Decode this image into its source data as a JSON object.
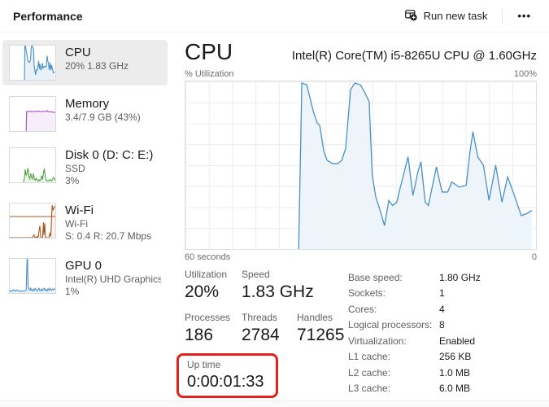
{
  "header": {
    "title": "Performance",
    "run_new_task": "Run new task",
    "more": "•••"
  },
  "sidebar": {
    "items": [
      {
        "id": "cpu",
        "title": "CPU",
        "lines": [
          "20%  1.83 GHz"
        ],
        "selected": true
      },
      {
        "id": "memory",
        "title": "Memory",
        "lines": [
          "3.4/7.9 GB (43%)"
        ]
      },
      {
        "id": "disk0",
        "title": "Disk 0 (D: C: E:)",
        "lines": [
          "SSD",
          "3%"
        ]
      },
      {
        "id": "wifi",
        "title": "Wi-Fi",
        "lines": [
          "Wi-Fi",
          "S: 0.4  R: 20.7 Mbps"
        ]
      },
      {
        "id": "gpu0",
        "title": "GPU 0",
        "lines": [
          "Intel(R) UHD Graphics ...",
          "1%"
        ]
      }
    ]
  },
  "main": {
    "title": "CPU",
    "subtitle": "Intel(R) Core(TM) i5-8265U CPU @ 1.60GHz",
    "chart_labels": {
      "top_left": "% Utilization",
      "top_right": "100%",
      "bottom_left": "60 seconds",
      "bottom_right": "0"
    },
    "stats": {
      "utilization": {
        "label": "Utilization",
        "value": "20%"
      },
      "speed": {
        "label": "Speed",
        "value": "1.83 GHz"
      },
      "processes": {
        "label": "Processes",
        "value": "186"
      },
      "threads": {
        "label": "Threads",
        "value": "2784"
      },
      "handles": {
        "label": "Handles",
        "value": "71265"
      },
      "uptime": {
        "label": "Up time",
        "value": "0:00:01:33"
      }
    },
    "details": [
      {
        "label": "Base speed:",
        "value": "1.80 GHz"
      },
      {
        "label": "Sockets:",
        "value": "1"
      },
      {
        "label": "Cores:",
        "value": "4"
      },
      {
        "label": "Logical processors:",
        "value": "8"
      },
      {
        "label": "Virtualization:",
        "value": "Enabled"
      },
      {
        "label": "L1 cache:",
        "value": "256 KB"
      },
      {
        "label": "L2 cache:",
        "value": "1.0 MB"
      },
      {
        "label": "L3 cache:",
        "value": "6.0 MB"
      }
    ]
  },
  "colors": {
    "cpu_line": "#4a90c8",
    "cpu_fill": "#edf4fa",
    "memory_line": "#a24dbd",
    "memory_fill": "#f7eefb",
    "disk_line": "#55a546",
    "disk_fill": "#edf6ea",
    "wifi_line": "#a65a22",
    "wifi_fill": "#f8f0e9",
    "gpu_line": "#4a90c8",
    "gpu_fill": "#edf4fa",
    "highlight_red": "#e2231a",
    "selected_bg": "#ececec",
    "grid": "#ececec"
  },
  "charts": {
    "cpu_main": {
      "type": "area",
      "xlabel": "60 seconds",
      "ylabel": "% Utilization",
      "ylim": [
        0,
        100
      ],
      "line": "#4a90c8",
      "fill": "#edf4fa",
      "width": 1.3,
      "points": [
        [
          32.3,
          0
        ],
        [
          33.2,
          99
        ],
        [
          34.6,
          98
        ],
        [
          36.5,
          82
        ],
        [
          37.6,
          75
        ],
        [
          38.3,
          74
        ],
        [
          39.5,
          58
        ],
        [
          40.4,
          53
        ],
        [
          42,
          51
        ],
        [
          43.5,
          51
        ],
        [
          44.6,
          53
        ],
        [
          45.7,
          60
        ],
        [
          47.1,
          95
        ],
        [
          48.3,
          99
        ],
        [
          49.9,
          98
        ],
        [
          51,
          94
        ],
        [
          52.4,
          88
        ],
        [
          53.3,
          44
        ],
        [
          54.3,
          31
        ],
        [
          55.7,
          22
        ],
        [
          56.8,
          14
        ],
        [
          58,
          29
        ],
        [
          59.1,
          26
        ],
        [
          60.3,
          28
        ],
        [
          61.2,
          36
        ],
        [
          62.4,
          46
        ],
        [
          63.5,
          55
        ],
        [
          64.9,
          32
        ],
        [
          66.3,
          46
        ],
        [
          67.2,
          52
        ],
        [
          68.4,
          28
        ],
        [
          69.3,
          26
        ],
        [
          70.4,
          37
        ],
        [
          71.6,
          49
        ],
        [
          73.2,
          34
        ],
        [
          74.8,
          34
        ],
        [
          76,
          40
        ],
        [
          78.1,
          37
        ],
        [
          80.1,
          38
        ],
        [
          81.1,
          57
        ],
        [
          82,
          70
        ],
        [
          83.4,
          55
        ],
        [
          85,
          50
        ],
        [
          86.6,
          29
        ],
        [
          88.5,
          50
        ],
        [
          90.3,
          28
        ],
        [
          91.9,
          43
        ],
        [
          93.5,
          34
        ],
        [
          95.8,
          20
        ],
        [
          97.2,
          21
        ],
        [
          98.8,
          23
        ]
      ]
    },
    "cpu_mini": {
      "type": "area",
      "ylim": [
        0,
        100
      ],
      "line": "#4a90c8",
      "fill": "#e7f1f9",
      "width": 1.1,
      "points": [
        [
          32.3,
          0
        ],
        [
          33.2,
          99
        ],
        [
          34.6,
          98
        ],
        [
          36.5,
          82
        ],
        [
          37.6,
          75
        ],
        [
          39.5,
          58
        ],
        [
          40.4,
          53
        ],
        [
          43.5,
          51
        ],
        [
          45.7,
          60
        ],
        [
          47.1,
          95
        ],
        [
          48.3,
          99
        ],
        [
          49.9,
          98
        ],
        [
          52.4,
          88
        ],
        [
          53.3,
          44
        ],
        [
          55.7,
          22
        ],
        [
          56.8,
          14
        ],
        [
          58,
          29
        ],
        [
          60.3,
          28
        ],
        [
          62.4,
          46
        ],
        [
          63.5,
          55
        ],
        [
          64.9,
          32
        ],
        [
          66.3,
          46
        ],
        [
          68.4,
          28
        ],
        [
          70.4,
          37
        ],
        [
          71.6,
          49
        ],
        [
          73.2,
          34
        ],
        [
          76,
          40
        ],
        [
          78.1,
          37
        ],
        [
          80.1,
          38
        ],
        [
          82,
          70
        ],
        [
          83.4,
          55
        ],
        [
          85,
          50
        ],
        [
          86.6,
          29
        ],
        [
          88.5,
          50
        ],
        [
          90.3,
          28
        ],
        [
          91.9,
          43
        ],
        [
          93.5,
          34
        ],
        [
          95.8,
          20
        ],
        [
          98.8,
          23
        ]
      ]
    },
    "memory_mini": {
      "type": "area",
      "ylim": [
        0,
        100
      ],
      "line": "#a24dbd",
      "fill": "#f7eefb",
      "width": 1.1,
      "points": [
        [
          36,
          0
        ],
        [
          37,
          57
        ],
        [
          40,
          57
        ],
        [
          44,
          58
        ],
        [
          48,
          57
        ],
        [
          52,
          57
        ],
        [
          56,
          58
        ],
        [
          60,
          57
        ],
        [
          64,
          59
        ],
        [
          66,
          57
        ],
        [
          70,
          57
        ],
        [
          74,
          58
        ],
        [
          78,
          57
        ],
        [
          82,
          60
        ],
        [
          84,
          57
        ],
        [
          88,
          56
        ],
        [
          92,
          56
        ],
        [
          96,
          55
        ],
        [
          100,
          55
        ]
      ]
    },
    "disk_mini": {
      "type": "area",
      "ylim": [
        0,
        100
      ],
      "line": "#55a546",
      "fill": "#edf6ea",
      "width": 1.1,
      "points": [
        [
          30,
          0
        ],
        [
          32,
          10
        ],
        [
          34,
          38
        ],
        [
          36,
          20
        ],
        [
          38,
          28
        ],
        [
          40,
          42
        ],
        [
          42,
          16
        ],
        [
          44,
          10
        ],
        [
          46,
          26
        ],
        [
          48,
          14
        ],
        [
          50,
          10
        ],
        [
          52,
          26
        ],
        [
          54,
          10
        ],
        [
          56,
          6
        ],
        [
          58,
          12
        ],
        [
          60,
          8
        ],
        [
          62,
          4
        ],
        [
          64,
          8
        ],
        [
          66,
          4
        ],
        [
          68,
          6
        ],
        [
          70,
          20
        ],
        [
          72,
          8
        ],
        [
          74,
          28
        ],
        [
          76,
          40
        ],
        [
          78,
          14
        ],
        [
          80,
          6
        ],
        [
          84,
          4
        ],
        [
          88,
          8
        ],
        [
          92,
          4
        ],
        [
          96,
          14
        ],
        [
          100,
          6
        ]
      ]
    },
    "wifi_mini": {
      "type": "area",
      "ylim": [
        0,
        100
      ],
      "line": "#a65a22",
      "fill": "#f8f0e9",
      "width": 1.1,
      "hline": 62,
      "points": [
        [
          0,
          0
        ],
        [
          50,
          0
        ],
        [
          53,
          8
        ],
        [
          55,
          2
        ],
        [
          57,
          0
        ],
        [
          60,
          3
        ],
        [
          62,
          0
        ],
        [
          66,
          35
        ],
        [
          68,
          4
        ],
        [
          69,
          0
        ],
        [
          72,
          0
        ],
        [
          74,
          45
        ],
        [
          75,
          8
        ],
        [
          77,
          42
        ],
        [
          78,
          10
        ],
        [
          79,
          0
        ],
        [
          86,
          0
        ],
        [
          88,
          12
        ],
        [
          90,
          4
        ],
        [
          93,
          95
        ],
        [
          95,
          80
        ],
        [
          97,
          88
        ],
        [
          100,
          92
        ]
      ]
    },
    "gpu_mini": {
      "type": "area",
      "ylim": [
        0,
        100
      ],
      "line": "#4a90c8",
      "fill": "#e7f1f9",
      "width": 1.1,
      "points": [
        [
          0,
          8
        ],
        [
          4,
          5
        ],
        [
          8,
          10
        ],
        [
          12,
          6
        ],
        [
          16,
          9
        ],
        [
          20,
          5
        ],
        [
          24,
          7
        ],
        [
          28,
          5
        ],
        [
          32,
          6
        ],
        [
          36,
          8
        ],
        [
          38,
          100
        ],
        [
          39,
          100
        ],
        [
          40,
          22
        ],
        [
          42,
          12
        ],
        [
          44,
          8
        ],
        [
          46,
          14
        ],
        [
          48,
          8
        ],
        [
          50,
          6
        ],
        [
          52,
          12
        ],
        [
          54,
          8
        ],
        [
          56,
          14
        ],
        [
          58,
          10
        ],
        [
          60,
          6
        ],
        [
          62,
          10
        ],
        [
          64,
          14
        ],
        [
          66,
          8
        ],
        [
          68,
          6
        ],
        [
          70,
          12
        ],
        [
          72,
          8
        ],
        [
          74,
          10
        ],
        [
          76,
          14
        ],
        [
          78,
          8
        ],
        [
          80,
          10
        ],
        [
          82,
          6
        ],
        [
          84,
          12
        ],
        [
          86,
          8
        ],
        [
          88,
          14
        ],
        [
          90,
          10
        ],
        [
          92,
          8
        ],
        [
          94,
          12
        ],
        [
          96,
          10
        ],
        [
          98,
          12
        ],
        [
          100,
          10
        ]
      ]
    }
  }
}
